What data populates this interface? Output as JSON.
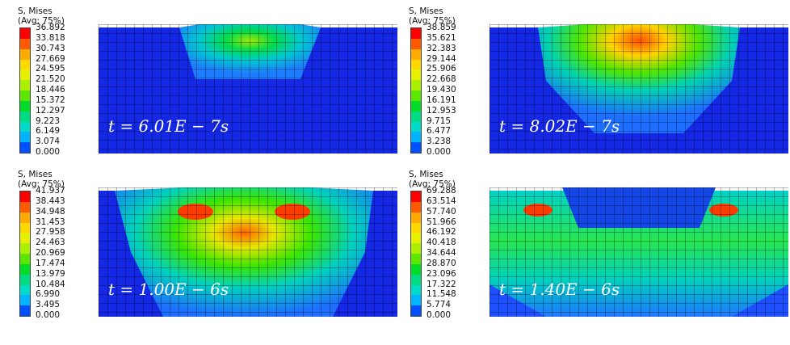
{
  "colorbar": [
    "#ff0000",
    "#ff5a00",
    "#ffaa00",
    "#ffd800",
    "#e6f000",
    "#aaf000",
    "#5ce600",
    "#00dc28",
    "#00dc82",
    "#00dcc8",
    "#00b4ff",
    "#0050ff",
    "#0000ee"
  ],
  "panels": [
    {
      "title_line1": "S, Mises",
      "title_line2": "(Avg: 75%)",
      "legend_values": [
        "36.892",
        "33.818",
        "30.743",
        "27.669",
        "24.595",
        "21.520",
        "18.446",
        "15.372",
        "12.297",
        "9.223",
        "6.149",
        "3.074",
        "0.000"
      ],
      "time_label": "t = 6.01E − 7s"
    },
    {
      "title_line1": "S, Mises",
      "title_line2": "(Avg: 75%)",
      "legend_values": [
        "38.859",
        "35.621",
        "32.383",
        "29.144",
        "25.906",
        "22.668",
        "19.430",
        "16.191",
        "12.953",
        "9.715",
        "6.477",
        "3.238",
        "0.000"
      ],
      "time_label": "t = 8.02E − 7s"
    },
    {
      "title_line1": "S, Mises",
      "title_line2": "(Avg: 75%)",
      "legend_values": [
        "41.937",
        "38.443",
        "34.948",
        "31.453",
        "27.958",
        "24.463",
        "20.969",
        "17.474",
        "13.979",
        "10.484",
        "6.990",
        "3.495",
        "0.000"
      ],
      "time_label": "t = 1.00E − 6s"
    },
    {
      "title_line1": "S, Mises",
      "title_line2": "(Avg: 75%)",
      "legend_values": [
        "69.288",
        "63.514",
        "57.740",
        "51.966",
        "46.192",
        "40.418",
        "34.644",
        "28.870",
        "23.096",
        "17.322",
        "11.548",
        "5.774",
        "0.000"
      ],
      "time_label": "t = 1.40E − 6s"
    }
  ]
}
